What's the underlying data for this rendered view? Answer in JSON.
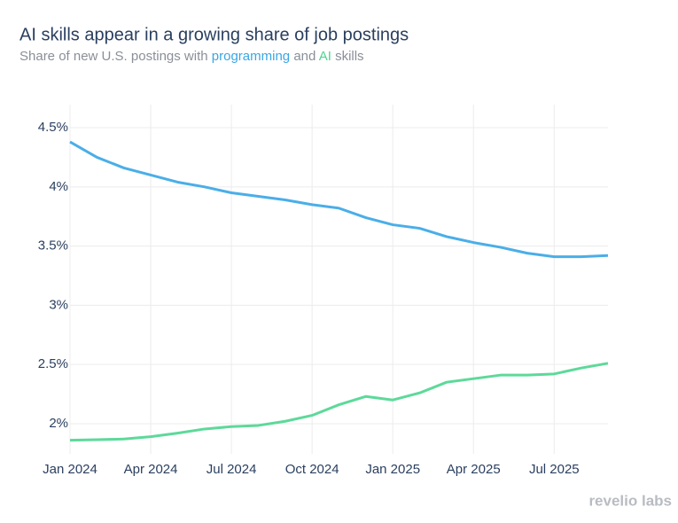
{
  "chart_data": {
    "type": "line",
    "title": "AI skills appear in a growing share of job postings",
    "subtitle_start": "Share of new U.S. postings with",
    "subtitle_join": "and",
    "subtitle_end": "skills",
    "watermark": "revelio labs",
    "categories": [
      "Jan 2024",
      null,
      null,
      "Apr 2024",
      null,
      null,
      "Jul 2024",
      null,
      null,
      "Oct 2024",
      null,
      null,
      "Jan 2025",
      null,
      null,
      "Apr 2025",
      null,
      null,
      "Jul 2025",
      null,
      null
    ],
    "series": [
      {
        "name": "programming",
        "color": "#4aaee8",
        "values": [
          4.38,
          4.25,
          4.16,
          4.1,
          4.04,
          4.0,
          3.95,
          3.92,
          3.89,
          3.85,
          3.82,
          3.74,
          3.68,
          3.65,
          3.58,
          3.53,
          3.49,
          3.44,
          3.41,
          3.41,
          3.42
        ]
      },
      {
        "name": "AI",
        "color": "#5dd99a",
        "values": [
          1.86,
          1.865,
          1.87,
          1.89,
          1.92,
          1.955,
          1.975,
          1.985,
          2.02,
          2.07,
          2.16,
          2.23,
          2.2,
          2.26,
          2.35,
          2.38,
          2.41,
          2.41,
          2.42,
          2.47,
          2.51
        ]
      }
    ],
    "ylim": [
      1.745,
      4.695
    ],
    "yticks": [
      {
        "value": 2,
        "label": "2%"
      },
      {
        "value": 2.5,
        "label": "2.5%"
      },
      {
        "value": 3,
        "label": "3%"
      },
      {
        "value": 3.5,
        "label": "3.5%"
      },
      {
        "value": 4,
        "label": "4%"
      },
      {
        "value": 4.5,
        "label": "4.5%"
      }
    ],
    "grid": true
  }
}
